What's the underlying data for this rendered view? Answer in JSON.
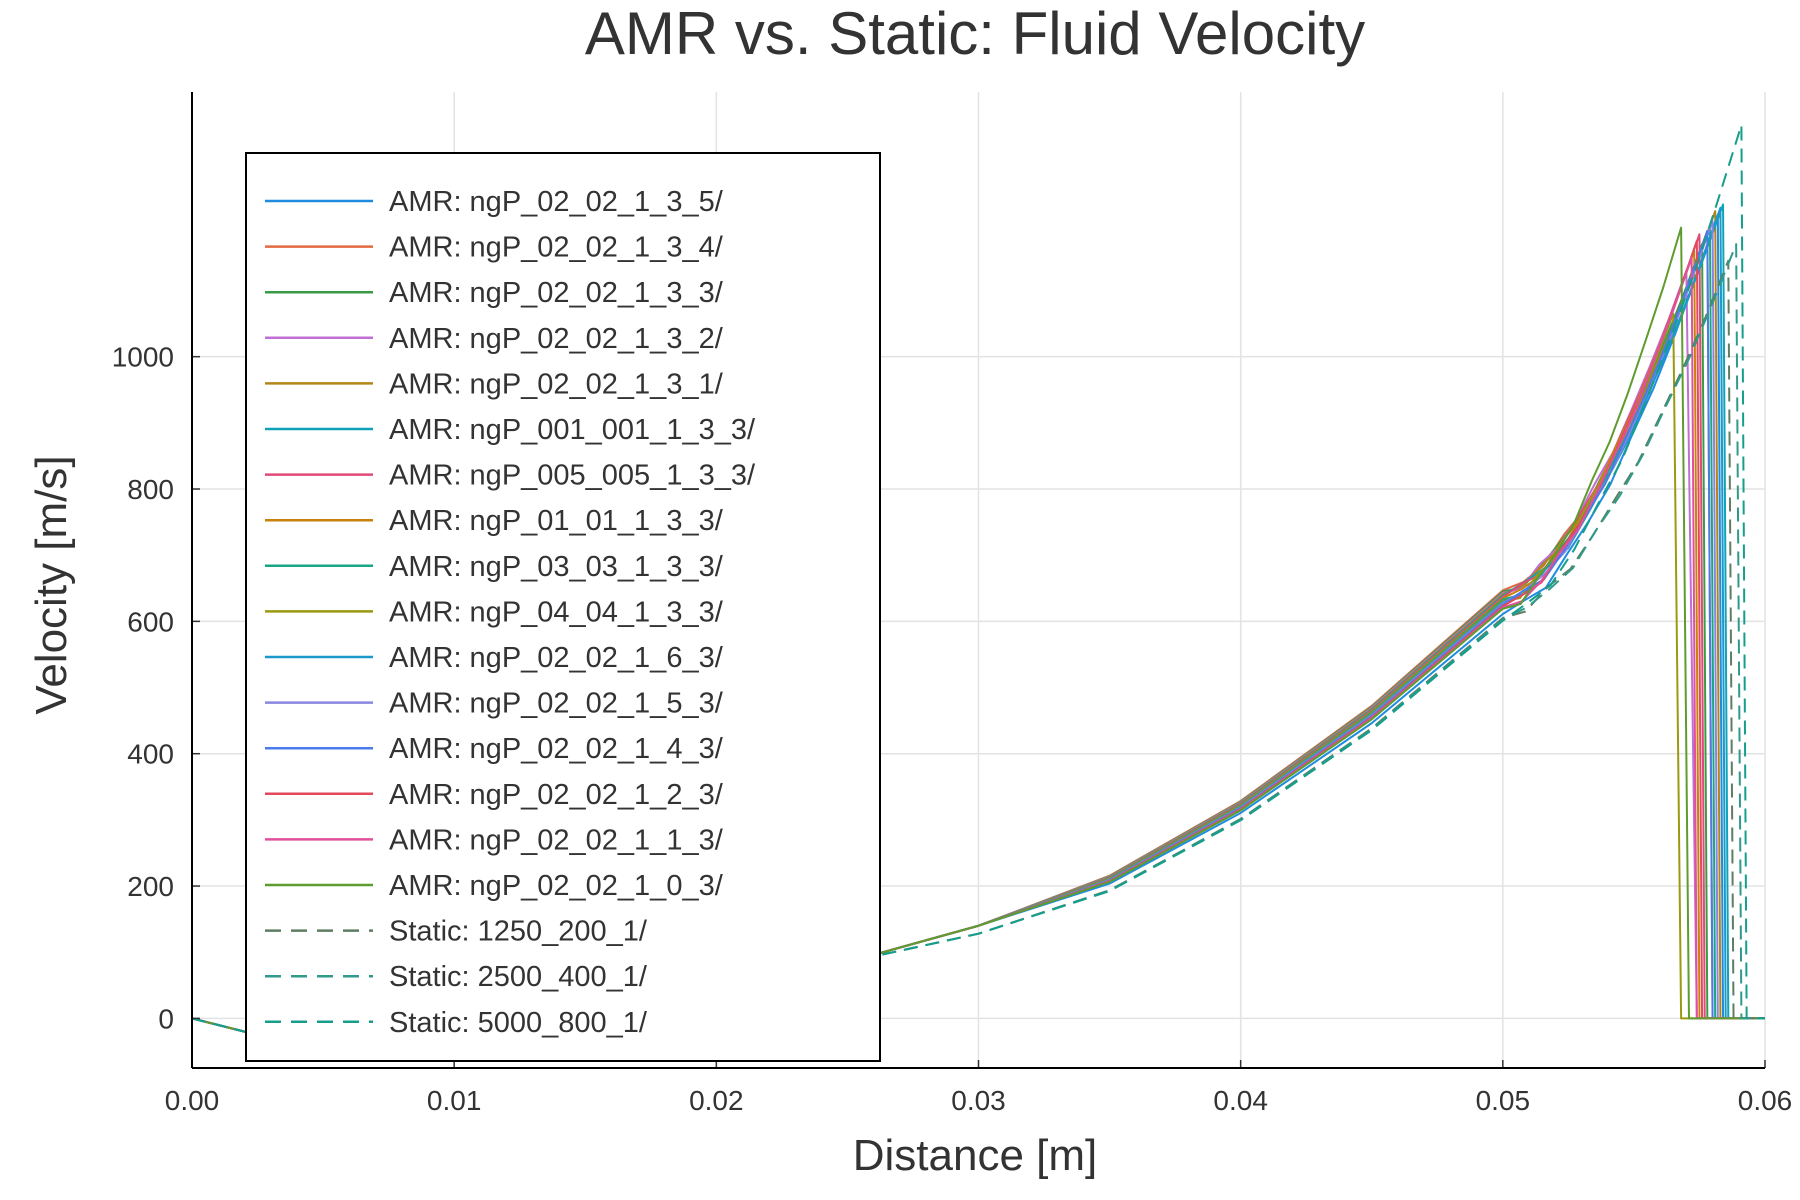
{
  "chart_data": {
    "type": "line",
    "title": "AMR vs. Static: Fluid Velocity",
    "xlabel": "Distance [m]",
    "ylabel": "Velocity [m/s]",
    "xlim": [
      0.0,
      0.06
    ],
    "ylim": [
      -75,
      1400
    ],
    "xticks": [
      "0.00",
      "0.01",
      "0.02",
      "0.03",
      "0.04",
      "0.05",
      "0.06"
    ],
    "yticks": [
      "0",
      "200",
      "400",
      "600",
      "800",
      "1000"
    ],
    "grid": true,
    "legend_position": "top-left",
    "series": [
      {
        "name": "AMR: ngP_02_02_1_3_5/",
        "color": "#1f8ce0",
        "dash": "solid",
        "peak_x": 0.0582,
        "peak": 1215,
        "drop_end": 0.0584
      },
      {
        "name": "AMR: ngP_02_02_1_3_4/",
        "color": "#e26a42",
        "dash": "solid",
        "peak_x": 0.0578,
        "peak": 1190,
        "drop_end": 0.058
      },
      {
        "name": "AMR: ngP_02_02_1_3_3/",
        "color": "#3a9b46",
        "dash": "solid",
        "peak_x": 0.0576,
        "peak": 1170,
        "drop_end": 0.0578
      },
      {
        "name": "AMR: ngP_02_02_1_3_2/",
        "color": "#c070d4",
        "dash": "solid",
        "peak_x": 0.057,
        "peak": 1130,
        "drop_end": 0.0574
      },
      {
        "name": "AMR: ngP_02_02_1_3_1/",
        "color": "#b58418",
        "dash": "solid",
        "peak_x": 0.0581,
        "peak": 1220,
        "drop_end": 0.0583
      },
      {
        "name": "AMR: ngP_001_001_1_3_3/",
        "color": "#0fa3b8",
        "dash": "solid",
        "peak_x": 0.0584,
        "peak": 1230,
        "drop_end": 0.0586
      },
      {
        "name": "AMR: ngP_005_005_1_3_3/",
        "color": "#e04a78",
        "dash": "solid",
        "peak_x": 0.0575,
        "peak": 1185,
        "drop_end": 0.0577
      },
      {
        "name": "AMR: ngP_01_01_1_3_3/",
        "color": "#c8820c",
        "dash": "solid",
        "peak_x": 0.0573,
        "peak": 1160,
        "drop_end": 0.0575
      },
      {
        "name": "AMR: ngP_03_03_1_3_3/",
        "color": "#1aa585",
        "dash": "solid",
        "peak_x": 0.0579,
        "peak": 1195,
        "drop_end": 0.0581
      },
      {
        "name": "AMR: ngP_04_04_1_3_3/",
        "color": "#9a9a10",
        "dash": "solid",
        "peak_x": 0.0565,
        "peak": 1065,
        "drop_end": 0.0568
      },
      {
        "name": "AMR: ngP_02_02_1_6_3/",
        "color": "#1b98cc",
        "dash": "solid",
        "peak_x": 0.0583,
        "peak": 1225,
        "drop_end": 0.0585
      },
      {
        "name": "AMR: ngP_02_02_1_5_3/",
        "color": "#8a86e0",
        "dash": "solid",
        "peak_x": 0.058,
        "peak": 1205,
        "drop_end": 0.0582
      },
      {
        "name": "AMR: ngP_02_02_1_4_3/",
        "color": "#4a7be8",
        "dash": "solid",
        "peak_x": 0.0578,
        "peak": 1190,
        "drop_end": 0.058
      },
      {
        "name": "AMR: ngP_02_02_1_2_3/",
        "color": "#e24a5c",
        "dash": "solid",
        "peak_x": 0.0574,
        "peak": 1175,
        "drop_end": 0.0576
      },
      {
        "name": "AMR: ngP_02_02_1_1_3/",
        "color": "#e0509c",
        "dash": "solid",
        "peak_x": 0.0572,
        "peak": 1150,
        "drop_end": 0.0574
      },
      {
        "name": "AMR: ngP_02_02_1_0_3/",
        "color": "#5e9c2e",
        "dash": "solid",
        "peak_x": 0.0568,
        "peak": 1195,
        "drop_end": 0.0571
      },
      {
        "name": "Static: 1250_200_1/",
        "color": "#5f7d62",
        "dash": "dashed",
        "peak_x": 0.0586,
        "peak": 1145,
        "drop_end": 0.0588
      },
      {
        "name": "Static: 2500_400_1/",
        "color": "#2f9a8a",
        "dash": "dashed",
        "peak_x": 0.0589,
        "peak": 1170,
        "drop_end": 0.0591
      },
      {
        "name": "Static: 5000_800_1/",
        "color": "#159e8c",
        "dash": "dashed",
        "peak_x": 0.0591,
        "peak": 1350,
        "drop_end": 0.0593
      }
    ]
  }
}
